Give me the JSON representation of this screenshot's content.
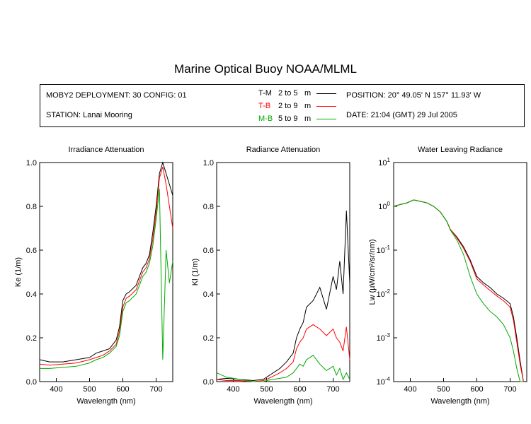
{
  "title": "Marine Optical Buoy NOAA/MLML",
  "info": {
    "deployment": "MOBY2 DEPLOYMENT: 30 CONFIG: 01",
    "station": "STATION: Lanai Mooring",
    "position": "POSITION: 20° 49.05' N   157° 11.93' W",
    "date": "DATE: 21:04 (GMT) 29 Jul 2005"
  },
  "legend": [
    {
      "key": "T-M",
      "range": "2 to 5",
      "unit": "m",
      "color": "#000000"
    },
    {
      "key": "T-B",
      "range": "2 to 9",
      "unit": "m",
      "color": "#ff0000"
    },
    {
      "key": "M-B",
      "range": "5 to 9",
      "unit": "m",
      "color": "#00aa00"
    }
  ],
  "chart_data": [
    {
      "type": "line",
      "title": "Irradiance Attenuation",
      "xlabel": "Wavelength (nm)",
      "ylabel": "Ke  (1/m)",
      "xlim": [
        350,
        750
      ],
      "ylim": [
        0,
        1.0
      ],
      "xticks": [
        "400",
        "500",
        "600",
        "700"
      ],
      "yticks": [
        "0.0",
        "0.2",
        "0.4",
        "0.6",
        "0.8",
        "1.0"
      ],
      "series": [
        {
          "name": "T-M",
          "color": "#000000",
          "x": [
            350,
            380,
            420,
            460,
            500,
            520,
            540,
            560,
            580,
            590,
            600,
            610,
            620,
            640,
            650,
            660,
            670,
            680,
            690,
            700,
            710,
            720,
            730,
            740,
            750
          ],
          "y": [
            0.1,
            0.09,
            0.09,
            0.1,
            0.11,
            0.13,
            0.14,
            0.15,
            0.19,
            0.25,
            0.37,
            0.4,
            0.41,
            0.44,
            0.48,
            0.52,
            0.54,
            0.58,
            0.68,
            0.8,
            0.95,
            1.0,
            0.95,
            0.9,
            0.85
          ]
        },
        {
          "name": "T-B",
          "color": "#ff0000",
          "x": [
            350,
            380,
            420,
            460,
            500,
            520,
            540,
            560,
            580,
            590,
            600,
            610,
            620,
            640,
            650,
            660,
            670,
            680,
            690,
            700,
            710,
            720,
            730,
            740,
            750
          ],
          "y": [
            0.08,
            0.075,
            0.08,
            0.085,
            0.1,
            0.11,
            0.12,
            0.14,
            0.17,
            0.23,
            0.34,
            0.38,
            0.39,
            0.42,
            0.46,
            0.5,
            0.52,
            0.56,
            0.65,
            0.77,
            0.93,
            0.98,
            0.9,
            0.8,
            0.7
          ]
        },
        {
          "name": "M-B",
          "color": "#00aa00",
          "x": [
            350,
            380,
            420,
            460,
            500,
            520,
            540,
            560,
            580,
            590,
            600,
            610,
            620,
            640,
            650,
            660,
            670,
            680,
            690,
            700,
            710,
            720,
            730,
            740,
            750
          ],
          "y": [
            0.06,
            0.06,
            0.065,
            0.07,
            0.085,
            0.1,
            0.11,
            0.13,
            0.16,
            0.21,
            0.32,
            0.36,
            0.37,
            0.4,
            0.44,
            0.48,
            0.5,
            0.54,
            0.62,
            0.74,
            0.88,
            0.1,
            0.6,
            0.45,
            0.55
          ]
        }
      ]
    },
    {
      "type": "line",
      "title": "Radiance Attenuation",
      "xlabel": "Wavelength (nm)",
      "ylabel": "Kl  (1/m)",
      "xlim": [
        350,
        750
      ],
      "ylim": [
        0,
        1.0
      ],
      "xticks": [
        "400",
        "500",
        "600",
        "700"
      ],
      "yticks": [
        "0.0",
        "0.2",
        "0.4",
        "0.6",
        "0.8",
        "1.0"
      ],
      "series": [
        {
          "name": "T-M",
          "color": "#000000",
          "x": [
            350,
            380,
            420,
            460,
            490,
            500,
            520,
            540,
            560,
            580,
            590,
            600,
            610,
            620,
            640,
            660,
            680,
            700,
            710,
            720,
            730,
            740,
            750
          ],
          "y": [
            0.01,
            0.015,
            0.01,
            0.005,
            0.01,
            0.02,
            0.04,
            0.06,
            0.09,
            0.13,
            0.2,
            0.24,
            0.27,
            0.34,
            0.37,
            0.43,
            0.33,
            0.48,
            0.42,
            0.55,
            0.4,
            0.78,
            0.45
          ]
        },
        {
          "name": "T-B",
          "color": "#ff0000",
          "x": [
            350,
            380,
            420,
            460,
            490,
            500,
            520,
            540,
            560,
            580,
            590,
            600,
            610,
            620,
            640,
            660,
            680,
            700,
            710,
            720,
            730,
            740,
            750
          ],
          "y": [
            0.01,
            0.005,
            0.005,
            0.0,
            0.005,
            0.01,
            0.025,
            0.04,
            0.06,
            0.09,
            0.15,
            0.18,
            0.2,
            0.24,
            0.26,
            0.24,
            0.21,
            0.24,
            0.2,
            0.18,
            0.14,
            0.25,
            0.1
          ]
        },
        {
          "name": "M-B",
          "color": "#00aa00",
          "x": [
            350,
            380,
            420,
            460,
            490,
            500,
            520,
            540,
            560,
            580,
            590,
            600,
            610,
            620,
            640,
            660,
            680,
            700,
            710,
            720,
            730,
            740,
            750
          ],
          "y": [
            0.04,
            0.02,
            0.01,
            0.0,
            0.0,
            0.005,
            0.01,
            0.015,
            0.02,
            0.04,
            0.06,
            0.08,
            0.07,
            0.1,
            0.12,
            0.08,
            0.05,
            0.07,
            0.03,
            0.06,
            0.01,
            0.04,
            0.01
          ]
        }
      ]
    },
    {
      "type": "line",
      "title": "Water Leaving Radiance",
      "xlabel": "Wavelength (nm)",
      "ylabel": "Lw  (µW/cm²/sr/nm)",
      "yscale": "log",
      "xlim": [
        350,
        750
      ],
      "ylim": [
        0.0001,
        10
      ],
      "xticks": [
        "400",
        "500",
        "600",
        "700"
      ],
      "yticks": [
        "10-4",
        "10-3",
        "10-2",
        "10-1",
        "100",
        "101"
      ],
      "series": [
        {
          "name": "T-M",
          "color": "#000000",
          "x": [
            350,
            370,
            390,
            410,
            430,
            450,
            470,
            490,
            510,
            520,
            540,
            560,
            580,
            600,
            620,
            640,
            660,
            680,
            700,
            710,
            720,
            730,
            740
          ],
          "y": [
            1.0,
            1.1,
            1.2,
            1.4,
            1.3,
            1.2,
            1.0,
            0.75,
            0.45,
            0.3,
            0.2,
            0.12,
            0.06,
            0.025,
            0.018,
            0.014,
            0.01,
            0.008,
            0.006,
            0.003,
            0.001,
            0.0003,
            0.0001
          ]
        },
        {
          "name": "T-B",
          "color": "#ff0000",
          "x": [
            350,
            370,
            390,
            410,
            430,
            450,
            470,
            490,
            510,
            520,
            540,
            560,
            580,
            600,
            620,
            640,
            660,
            680,
            700,
            710,
            720,
            730,
            740
          ],
          "y": [
            1.0,
            1.1,
            1.2,
            1.4,
            1.3,
            1.2,
            1.0,
            0.75,
            0.45,
            0.3,
            0.19,
            0.11,
            0.055,
            0.022,
            0.016,
            0.012,
            0.009,
            0.007,
            0.005,
            0.0025,
            0.0008,
            0.00025,
            0.0001
          ]
        },
        {
          "name": "M-B",
          "color": "#00aa00",
          "x": [
            350,
            370,
            390,
            410,
            430,
            450,
            470,
            490,
            510,
            520,
            540,
            560,
            580,
            600,
            620,
            640,
            660,
            680,
            700,
            710,
            720,
            730,
            740
          ],
          "y": [
            1.0,
            1.1,
            1.2,
            1.4,
            1.3,
            1.2,
            1.0,
            0.75,
            0.45,
            0.29,
            0.17,
            0.08,
            0.025,
            0.01,
            0.006,
            0.004,
            0.003,
            0.002,
            0.001,
            0.0005,
            0.0002,
            0.0001,
            0.0001
          ]
        }
      ]
    }
  ]
}
